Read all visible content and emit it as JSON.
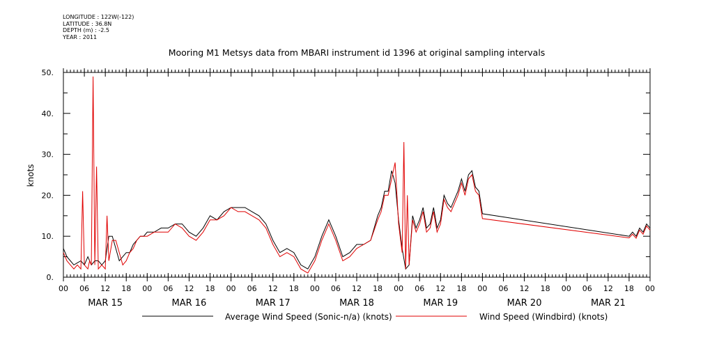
{
  "header": {
    "longitude": "LONGITUDE : 122W(-122)",
    "latitude": "LATITUDE : 36.8N",
    "depth": "DEPTH (m) : -2.5",
    "year": "YEAR : 2011"
  },
  "chart_data": {
    "type": "line",
    "title": "Mooring M1 Metsys data from MBARI instrument id 1396 at original sampling intervals",
    "ylabel": "knots",
    "xlabel": "",
    "ylim": [
      0,
      50
    ],
    "xlim": [
      0,
      168
    ],
    "yticks": [
      0,
      10,
      20,
      30,
      40,
      50
    ],
    "ytick_labels": [
      "0.",
      "10.",
      "20.",
      "30.",
      "40.",
      "50."
    ],
    "hour_ticks": [
      {
        "h": 0,
        "label": "00"
      },
      {
        "h": 6,
        "label": "06"
      },
      {
        "h": 12,
        "label": "12"
      },
      {
        "h": 18,
        "label": "18"
      },
      {
        "h": 24,
        "label": "00"
      },
      {
        "h": 30,
        "label": "06"
      },
      {
        "h": 36,
        "label": "12"
      },
      {
        "h": 42,
        "label": "18"
      },
      {
        "h": 48,
        "label": "00"
      },
      {
        "h": 54,
        "label": "06"
      },
      {
        "h": 60,
        "label": "12"
      },
      {
        "h": 66,
        "label": "18"
      },
      {
        "h": 72,
        "label": "00"
      },
      {
        "h": 78,
        "label": "06"
      },
      {
        "h": 84,
        "label": "12"
      },
      {
        "h": 90,
        "label": "18"
      },
      {
        "h": 96,
        "label": "00"
      },
      {
        "h": 102,
        "label": "06"
      },
      {
        "h": 108,
        "label": "12"
      },
      {
        "h": 114,
        "label": "18"
      },
      {
        "h": 120,
        "label": "00"
      },
      {
        "h": 126,
        "label": "06"
      },
      {
        "h": 132,
        "label": "12"
      },
      {
        "h": 138,
        "label": "18"
      },
      {
        "h": 144,
        "label": "00"
      },
      {
        "h": 150,
        "label": "06"
      },
      {
        "h": 156,
        "label": "12"
      },
      {
        "h": 162,
        "label": "18"
      },
      {
        "h": 168,
        "label": "00"
      }
    ],
    "day_labels": [
      {
        "h": 12,
        "label": "MAR 15"
      },
      {
        "h": 36,
        "label": "MAR 16"
      },
      {
        "h": 60,
        "label": "MAR 17"
      },
      {
        "h": 84,
        "label": "MAR 18"
      },
      {
        "h": 108,
        "label": "MAR 19"
      },
      {
        "h": 132,
        "label": "MAR 20"
      },
      {
        "h": 156,
        "label": "MAR 21"
      }
    ],
    "series": [
      {
        "name": "Average Wind Speed (Sonic-n/a) (knots)",
        "color": "#000000",
        "x": [
          0,
          1,
          2,
          3,
          4,
          5,
          6,
          7,
          8,
          9,
          10,
          11,
          12,
          13,
          14,
          15,
          16,
          17,
          18,
          19,
          20,
          21,
          22,
          23,
          24,
          26,
          28,
          30,
          32,
          34,
          36,
          38,
          40,
          42,
          44,
          46,
          48,
          50,
          52,
          54,
          56,
          58,
          60,
          62,
          64,
          66,
          68,
          70,
          72,
          74,
          76,
          78,
          80,
          82,
          84,
          86,
          88,
          90,
          91,
          92,
          93,
          94,
          95,
          96,
          97,
          98,
          99,
          100,
          101,
          102,
          103,
          104,
          105,
          106,
          107,
          108,
          109,
          110,
          111,
          112,
          113,
          114,
          115,
          116,
          117,
          118,
          119,
          120,
          162,
          163,
          164,
          165,
          166,
          167,
          168
        ],
        "y": [
          7,
          5,
          4,
          3,
          3.5,
          4,
          3,
          5,
          3,
          4,
          4,
          3,
          4,
          10,
          10,
          7,
          4,
          5,
          6,
          6,
          8,
          9,
          10,
          10,
          11,
          11,
          12,
          12,
          13,
          13,
          11,
          10,
          12,
          15,
          14,
          16,
          17,
          17,
          17,
          16,
          15,
          13,
          9,
          6,
          7,
          6,
          3,
          2,
          5,
          10,
          14,
          10,
          5,
          6,
          8,
          8,
          9,
          15,
          17,
          21,
          21,
          26,
          23,
          14,
          7,
          2,
          3,
          15,
          12,
          14,
          17,
          12,
          13,
          17,
          12,
          14,
          20,
          18,
          17,
          19,
          21,
          24,
          21,
          25,
          26,
          22,
          21,
          15.5,
          10,
          11,
          10,
          12,
          11,
          13,
          12
        ]
      },
      {
        "name": "Wind Speed (Windbird) (knots)",
        "color": "#e00000",
        "x": [
          0,
          1,
          2,
          3,
          4,
          5,
          5.5,
          6,
          7,
          7.5,
          8,
          8.5,
          9,
          9.5,
          10,
          11,
          12,
          12.5,
          13,
          14,
          15,
          16,
          17,
          18,
          19,
          20,
          21,
          22,
          23,
          24,
          26,
          28,
          30,
          32,
          34,
          36,
          38,
          40,
          42,
          44,
          46,
          48,
          50,
          52,
          54,
          56,
          58,
          60,
          62,
          64,
          66,
          68,
          70,
          72,
          74,
          76,
          78,
          80,
          82,
          84,
          86,
          88,
          90,
          91,
          92,
          93,
          94,
          95,
          96,
          97,
          97.5,
          98,
          98.5,
          99,
          100,
          101,
          102,
          103,
          104,
          105,
          106,
          107,
          108,
          109,
          110,
          111,
          112,
          113,
          114,
          115,
          116,
          117,
          118,
          119,
          120,
          162,
          163,
          164,
          165,
          166,
          167,
          168
        ],
        "y": [
          6,
          4,
          3,
          2,
          3,
          2,
          21,
          3,
          2,
          4,
          3,
          49,
          3,
          27,
          2,
          3,
          2,
          15,
          4,
          9,
          9,
          6,
          3,
          4,
          6,
          7,
          9,
          10,
          10,
          10,
          11,
          11,
          11,
          13,
          12,
          10,
          9,
          11,
          14,
          14,
          15,
          17,
          16,
          16,
          15,
          14,
          12,
          8,
          5,
          6,
          5,
          2,
          1,
          4,
          9,
          13,
          9,
          4,
          5,
          7,
          8,
          9,
          14,
          16,
          20,
          20,
          24,
          28,
          13,
          6,
          33,
          2,
          20,
          3,
          14,
          11,
          13,
          16,
          11,
          12,
          16,
          11,
          13,
          19,
          17,
          16,
          18,
          20,
          23,
          20,
          24,
          25,
          21,
          20,
          14.3,
          9.6,
          10.5,
          9.5,
          11.5,
          10.5,
          12.5,
          11.5
        ]
      }
    ],
    "legend": "bottom"
  }
}
